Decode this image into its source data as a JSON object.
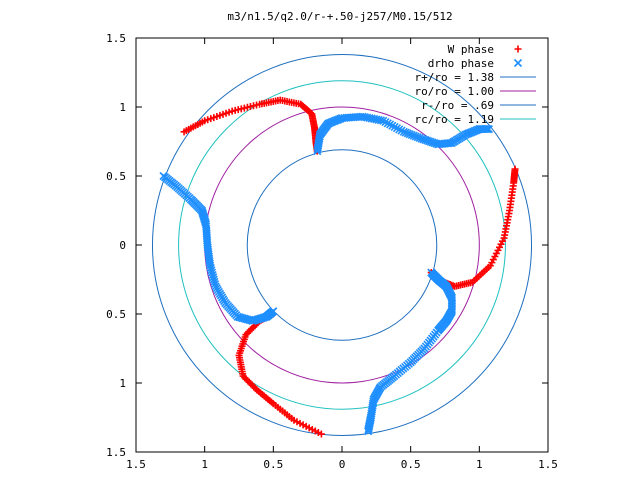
{
  "chart_data": {
    "type": "scatter",
    "title": "m3/n1.5/q2.0/r-+.50-j257/M0.15/512",
    "xlim": [
      -1.5,
      1.5
    ],
    "ylim": [
      -1.5,
      1.5
    ],
    "x_ticks": [
      -1.5,
      -1,
      -0.5,
      0,
      0.5,
      1,
      1.5
    ],
    "y_ticks": [
      -1.5,
      -1,
      -0.5,
      0,
      0.5,
      1,
      1.5
    ],
    "x_tick_labels": [
      "1.5",
      "1",
      "0.5",
      "0",
      "0.5",
      "1",
      "1.5"
    ],
    "y_tick_labels": [
      "1.5",
      "1",
      "0.5",
      "0",
      "0.5",
      "1",
      "1.5"
    ],
    "legend_position": "top-right",
    "grid": false,
    "series": [
      {
        "name": "W phase",
        "marker": "plus",
        "color": "#ff0000",
        "segments": [
          [
            [
              -1.15,
              0.82
            ],
            [
              -1.0,
              0.9
            ],
            [
              -0.8,
              0.97
            ],
            [
              -0.6,
              1.02
            ],
            [
              -0.45,
              1.05
            ],
            [
              -0.3,
              1.02
            ],
            [
              -0.22,
              0.95
            ],
            [
              -0.2,
              0.85
            ],
            [
              -0.19,
              0.75
            ],
            [
              -0.18,
              0.68
            ]
          ],
          [
            [
              0.65,
              -0.2
            ],
            [
              0.72,
              -0.26
            ],
            [
              0.82,
              -0.3
            ],
            [
              0.95,
              -0.27
            ],
            [
              1.08,
              -0.15
            ],
            [
              1.18,
              0.05
            ],
            [
              1.22,
              0.25
            ],
            [
              1.25,
              0.45
            ],
            [
              1.26,
              0.55
            ]
          ],
          [
            [
              -0.5,
              -0.5
            ],
            [
              -0.6,
              -0.55
            ],
            [
              -0.7,
              -0.65
            ],
            [
              -0.75,
              -0.8
            ],
            [
              -0.72,
              -0.95
            ],
            [
              -0.62,
              -1.05
            ],
            [
              -0.5,
              -1.15
            ],
            [
              -0.35,
              -1.27
            ],
            [
              -0.15,
              -1.37
            ]
          ]
        ]
      },
      {
        "name": "drho phase",
        "marker": "cross",
        "color": "#1f8fff",
        "segments": [
          [
            [
              -1.3,
              0.5
            ],
            [
              -1.2,
              0.42
            ],
            [
              -1.1,
              0.33
            ],
            [
              -1.02,
              0.25
            ],
            [
              -0.99,
              0.15
            ],
            [
              -0.98,
              0.0
            ],
            [
              -0.96,
              -0.15
            ],
            [
              -0.92,
              -0.3
            ],
            [
              -0.85,
              -0.42
            ],
            [
              -0.76,
              -0.52
            ],
            [
              -0.65,
              -0.55
            ],
            [
              -0.55,
              -0.52
            ],
            [
              -0.5,
              -0.48
            ]
          ],
          [
            [
              -0.18,
              0.68
            ],
            [
              -0.16,
              0.8
            ],
            [
              -0.1,
              0.88
            ],
            [
              0.0,
              0.92
            ],
            [
              0.15,
              0.93
            ],
            [
              0.3,
              0.9
            ],
            [
              0.45,
              0.82
            ],
            [
              0.58,
              0.77
            ],
            [
              0.7,
              0.73
            ],
            [
              0.8,
              0.74
            ],
            [
              0.9,
              0.8
            ],
            [
              1.0,
              0.84
            ],
            [
              1.07,
              0.84
            ]
          ],
          [
            [
              0.65,
              -0.2
            ],
            [
              0.7,
              -0.25
            ],
            [
              0.76,
              -0.3
            ],
            [
              0.8,
              -0.38
            ],
            [
              0.8,
              -0.48
            ],
            [
              0.76,
              -0.55
            ],
            [
              0.7,
              -0.62
            ],
            [
              0.6,
              -0.75
            ],
            [
              0.5,
              -0.85
            ],
            [
              0.38,
              -0.95
            ],
            [
              0.28,
              -1.03
            ],
            [
              0.23,
              -1.12
            ],
            [
              0.21,
              -1.25
            ],
            [
              0.19,
              -1.35
            ]
          ]
        ]
      }
    ],
    "circles": [
      {
        "name": "r+/ro = 1.38",
        "radius": 1.38,
        "color": "#1f6fbf"
      },
      {
        "name": "ro/ro = 1.00",
        "radius": 1.0,
        "color": "#a020a0"
      },
      {
        "name": "r-/ro = .69",
        "radius": 0.69,
        "color": "#1f6fbf"
      },
      {
        "name": "rc/ro = 1.19",
        "radius": 1.19,
        "color": "#20c0c0"
      }
    ]
  }
}
